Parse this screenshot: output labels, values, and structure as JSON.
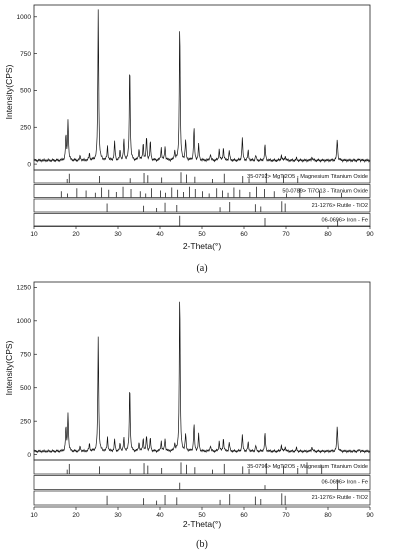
{
  "chart_data": [
    {
      "type": "line",
      "panel_label": "(a)",
      "ylabel": "Intensity(CPS)",
      "xlabel": "2-Theta(°)",
      "xlim": [
        10,
        90
      ],
      "ylim": [
        -40,
        1080
      ],
      "x_ticks": [
        10,
        20,
        30,
        40,
        50,
        60,
        70,
        80,
        90
      ],
      "y_ticks": [
        0,
        250,
        500,
        750,
        1000
      ],
      "baseline": 25,
      "peaks": [
        {
          "x": 17.6,
          "y": 190
        },
        {
          "x": 18.1,
          "y": 305
        },
        {
          "x": 21.0,
          "y": 55
        },
        {
          "x": 23.2,
          "y": 70
        },
        {
          "x": 25.3,
          "y": 1060
        },
        {
          "x": 27.5,
          "y": 120
        },
        {
          "x": 29.2,
          "y": 150
        },
        {
          "x": 30.5,
          "y": 90
        },
        {
          "x": 31.4,
          "y": 160
        },
        {
          "x": 32.8,
          "y": 680
        },
        {
          "x": 35.0,
          "y": 100
        },
        {
          "x": 36.0,
          "y": 140
        },
        {
          "x": 36.8,
          "y": 185
        },
        {
          "x": 37.7,
          "y": 150
        },
        {
          "x": 40.3,
          "y": 110
        },
        {
          "x": 41.2,
          "y": 120
        },
        {
          "x": 43.5,
          "y": 90
        },
        {
          "x": 44.7,
          "y": 970
        },
        {
          "x": 46.1,
          "y": 160
        },
        {
          "x": 48.1,
          "y": 250
        },
        {
          "x": 49.2,
          "y": 130
        },
        {
          "x": 52.0,
          "y": 70
        },
        {
          "x": 54.1,
          "y": 100
        },
        {
          "x": 55.1,
          "y": 110
        },
        {
          "x": 56.5,
          "y": 90
        },
        {
          "x": 59.6,
          "y": 180
        },
        {
          "x": 61.0,
          "y": 90
        },
        {
          "x": 62.8,
          "y": 60
        },
        {
          "x": 65.0,
          "y": 130
        },
        {
          "x": 68.9,
          "y": 60
        },
        {
          "x": 69.8,
          "y": 55
        },
        {
          "x": 72.5,
          "y": 40
        },
        {
          "x": 76.2,
          "y": 50
        },
        {
          "x": 82.2,
          "y": 175
        },
        {
          "x": 87.5,
          "y": 35
        }
      ],
      "references": [
        {
          "label": "35-0792> MgTi2O5 - Magnesium Titanium Oxide",
          "lines": [
            17.9,
            18.4,
            25.6,
            32.9,
            36.2,
            37.1,
            40.4,
            45.0,
            46.3,
            48.3,
            52.5,
            55.3,
            59.7,
            61.2,
            65.3,
            69.4,
            72.8
          ]
        },
        {
          "label": "50-0789> Ti7O13 - Titanium Oxide",
          "lines": [
            16.5,
            18.0,
            20.2,
            22.4,
            24.6,
            26.1,
            27.8,
            29.6,
            31.2,
            33.1,
            35.3,
            36.6,
            38.0,
            40.1,
            41.3,
            42.8,
            44.2,
            45.6,
            47.0,
            48.4,
            50.1,
            51.7,
            53.5,
            54.9,
            56.2,
            57.6,
            59.0,
            61.4,
            63.0,
            64.9,
            67.2,
            70.1,
            73.3,
            78.0,
            83.2
          ]
        },
        {
          "label": "21-1276> Rutile - TiO2",
          "lines": [
            27.4,
            36.1,
            39.2,
            41.2,
            44.0,
            54.3,
            56.6,
            62.7,
            64.0,
            69.0,
            69.8
          ]
        },
        {
          "label": "06-0696> Iron - Fe",
          "lines": [
            44.7,
            65.0,
            82.3
          ]
        }
      ]
    },
    {
      "type": "line",
      "panel_label": "(b)",
      "ylabel": "Intensity(CPS)",
      "xlabel": "2-Theta(°)",
      "xlim": [
        10,
        90
      ],
      "ylim": [
        -40,
        1290
      ],
      "x_ticks": [
        10,
        20,
        30,
        40,
        50,
        60,
        70,
        80,
        90
      ],
      "y_ticks": [
        0,
        250,
        500,
        750,
        1000,
        1250
      ],
      "baseline": 25,
      "peaks": [
        {
          "x": 17.6,
          "y": 200
        },
        {
          "x": 18.1,
          "y": 315
        },
        {
          "x": 21.0,
          "y": 60
        },
        {
          "x": 23.2,
          "y": 80
        },
        {
          "x": 25.3,
          "y": 890
        },
        {
          "x": 27.5,
          "y": 130
        },
        {
          "x": 29.2,
          "y": 110
        },
        {
          "x": 30.5,
          "y": 80
        },
        {
          "x": 31.4,
          "y": 120
        },
        {
          "x": 32.8,
          "y": 520
        },
        {
          "x": 35.0,
          "y": 90
        },
        {
          "x": 36.0,
          "y": 120
        },
        {
          "x": 36.8,
          "y": 140
        },
        {
          "x": 37.7,
          "y": 120
        },
        {
          "x": 40.3,
          "y": 100
        },
        {
          "x": 41.2,
          "y": 120
        },
        {
          "x": 43.5,
          "y": 80
        },
        {
          "x": 44.7,
          "y": 1230
        },
        {
          "x": 46.1,
          "y": 150
        },
        {
          "x": 48.1,
          "y": 230
        },
        {
          "x": 49.2,
          "y": 150
        },
        {
          "x": 52.0,
          "y": 70
        },
        {
          "x": 54.1,
          "y": 100
        },
        {
          "x": 55.1,
          "y": 120
        },
        {
          "x": 56.5,
          "y": 90
        },
        {
          "x": 59.6,
          "y": 150
        },
        {
          "x": 61.0,
          "y": 90
        },
        {
          "x": 62.8,
          "y": 70
        },
        {
          "x": 65.0,
          "y": 160
        },
        {
          "x": 68.9,
          "y": 70
        },
        {
          "x": 69.8,
          "y": 60
        },
        {
          "x": 72.5,
          "y": 50
        },
        {
          "x": 76.2,
          "y": 60
        },
        {
          "x": 82.2,
          "y": 220
        },
        {
          "x": 87.5,
          "y": 40
        }
      ],
      "references": [
        {
          "label": "35-0796> MgTi2O5 - Magnesium Titanium Oxide",
          "lines": [
            17.9,
            18.4,
            25.6,
            32.9,
            36.2,
            37.1,
            40.4,
            45.0,
            46.3,
            48.3,
            52.5,
            55.3,
            59.7,
            61.2,
            65.3,
            69.4,
            72.8,
            75.0,
            78.5
          ]
        },
        {
          "label": "06-0696> Iron - Fe",
          "lines": [
            44.7,
            65.0,
            82.3
          ]
        },
        {
          "label": "21-1276> Rutile - TiO2",
          "lines": [
            27.4,
            36.1,
            39.2,
            41.2,
            44.0,
            54.3,
            56.6,
            62.7,
            64.0,
            69.0,
            69.8
          ]
        }
      ]
    }
  ]
}
